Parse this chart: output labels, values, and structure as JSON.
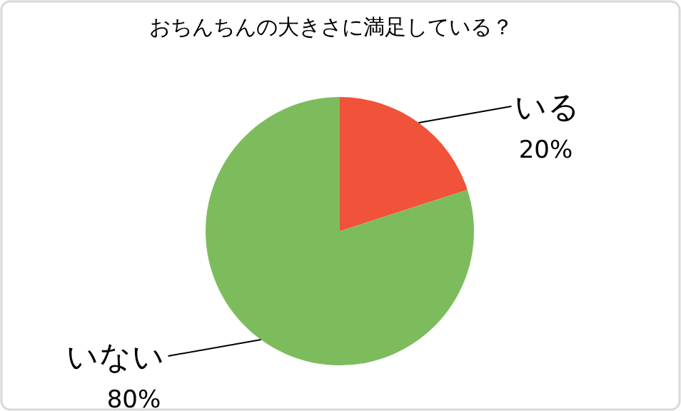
{
  "chart_data": {
    "type": "pie",
    "title": "おちんちんの大きさに満足している？",
    "categories": [
      "いる",
      "いない"
    ],
    "values": [
      20,
      80
    ],
    "colors": [
      "#f0523a",
      "#7dbc5d"
    ],
    "value_labels": [
      "20%",
      "80%"
    ]
  }
}
